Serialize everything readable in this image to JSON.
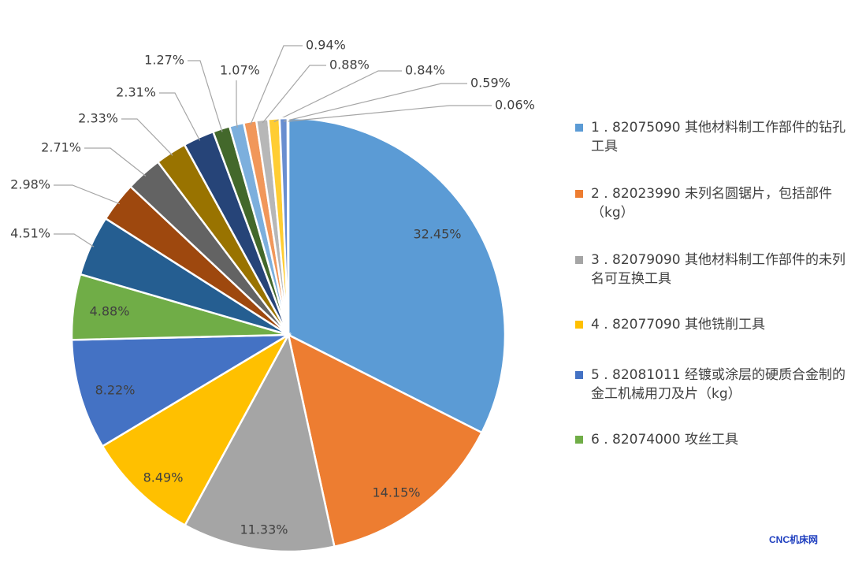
{
  "chart_data": {
    "type": "pie",
    "slices": [
      {
        "label": "32.45%",
        "value": 32.45,
        "color": "#5b9bd5"
      },
      {
        "label": "14.15%",
        "value": 14.15,
        "color": "#ed7d31"
      },
      {
        "label": "11.33%",
        "value": 11.33,
        "color": "#a5a5a5"
      },
      {
        "label": "8.49%",
        "value": 8.49,
        "color": "#ffc000"
      },
      {
        "label": "8.22%",
        "value": 8.22,
        "color": "#4472c4"
      },
      {
        "label": "4.88%",
        "value": 4.88,
        "color": "#70ad47"
      },
      {
        "label": "4.51%",
        "value": 4.51,
        "color": "#255e91"
      },
      {
        "label": "2.98%",
        "value": 2.98,
        "color": "#9e480e"
      },
      {
        "label": "2.71%",
        "value": 2.71,
        "color": "#636363"
      },
      {
        "label": "2.33%",
        "value": 2.33,
        "color": "#997300"
      },
      {
        "label": "2.31%",
        "value": 2.31,
        "color": "#264478"
      },
      {
        "label": "1.27%",
        "value": 1.27,
        "color": "#43682b"
      },
      {
        "label": "1.07%",
        "value": 1.07,
        "color": "#7cafdd"
      },
      {
        "label": "0.94%",
        "value": 0.94,
        "color": "#f1975a"
      },
      {
        "label": "0.88%",
        "value": 0.88,
        "color": "#b7b7b7"
      },
      {
        "label": "0.84%",
        "value": 0.84,
        "color": "#ffcd33"
      },
      {
        "label": "0.59%",
        "value": 0.59,
        "color": "#698ed0"
      },
      {
        "label": "0.06%",
        "value": 0.06,
        "color": "#8cc168"
      }
    ],
    "legend": {
      "placement": "right",
      "entries": [
        {
          "text": "1 . 82075090 其他材料制工作部件的钻孔工具",
          "color": "#5b9bd5"
        },
        {
          "text": "2 . 82023990 未列名圆锯片，包括部件（kg）",
          "color": "#ed7d31"
        },
        {
          "text": "3 . 82079090 其他材料制工作部件的未列名可互换工具",
          "color": "#a5a5a5"
        },
        {
          "text": "4 . 82077090 其他铣削工具",
          "color": "#ffc000"
        },
        {
          "text": "5 . 82081011 经镀或涂层的硬质合金制的金工机械用刀及片（kg）",
          "color": "#4472c4"
        },
        {
          "text": "6 . 82074000 攻丝工具",
          "color": "#70ad47"
        }
      ]
    }
  },
  "watermark": "CNC机床网"
}
